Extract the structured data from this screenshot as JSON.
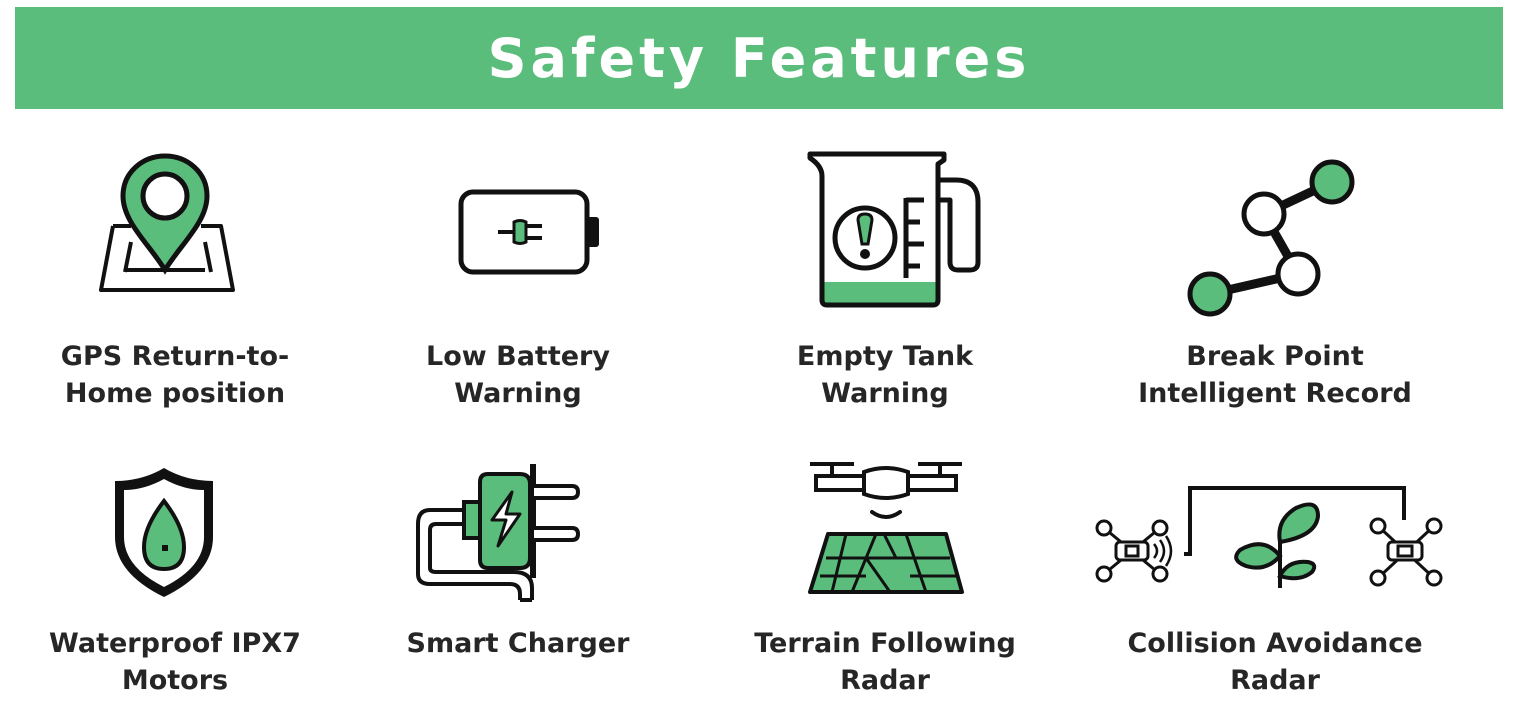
{
  "title": "Safety Features",
  "colors": {
    "accent": "#5bbd7c",
    "ink": "#111111",
    "text": "#262626"
  },
  "features": [
    {
      "icon": "map-pin-icon",
      "line1": "GPS Return-to-",
      "line2": "Home position"
    },
    {
      "icon": "battery-plug-icon",
      "line1": "Low Battery",
      "line2": "Warning"
    },
    {
      "icon": "measuring-jug-warning-icon",
      "line1": "Empty Tank",
      "line2": "Warning"
    },
    {
      "icon": "path-nodes-icon",
      "line1": "Break Point",
      "line2": "Intelligent Record"
    },
    {
      "icon": "shield-water-drop-icon",
      "line1": "Waterproof IPX7",
      "line2": "Motors"
    },
    {
      "icon": "charger-plug-icon",
      "line1": "Smart Charger",
      "line2": ""
    },
    {
      "icon": "drone-terrain-icon",
      "line1": "Terrain Following",
      "line2": "Radar"
    },
    {
      "icon": "drones-plant-icon",
      "line1": "Collision Avoidance",
      "line2": "Radar"
    }
  ]
}
